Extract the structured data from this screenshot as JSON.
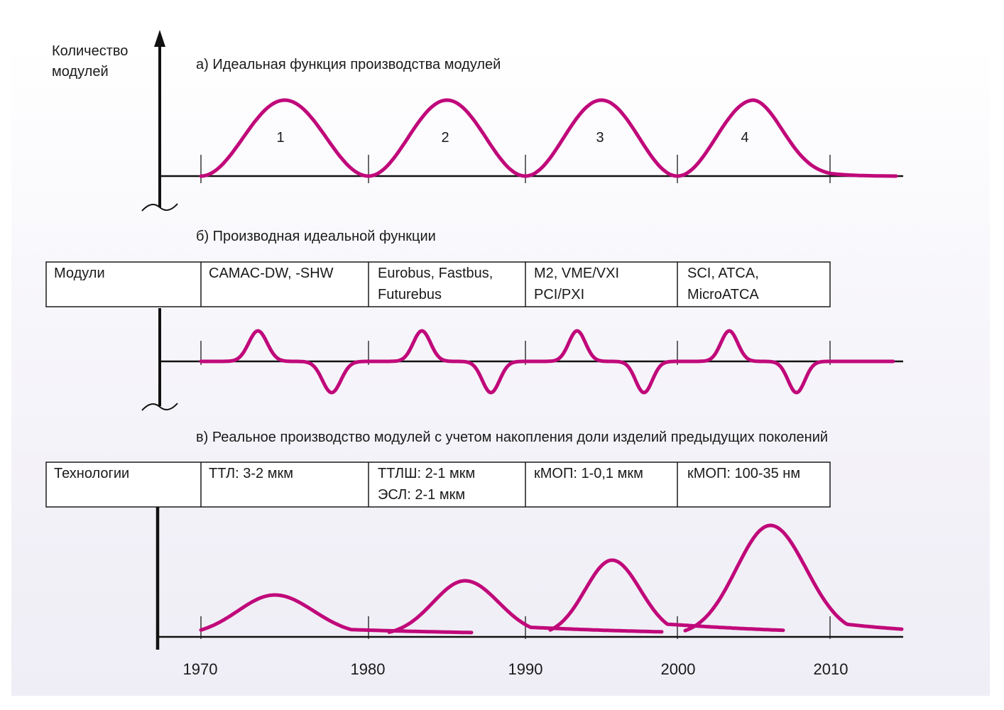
{
  "y_axis_label": [
    "Количество",
    "модулей"
  ],
  "panels": {
    "a_title": "а) Идеальная функция производства модулей",
    "b_title": "б) Производная идеальной функции",
    "c_title": "в) Реальное производство модулей с учетом накопления доли изделий предыдущих поколений"
  },
  "peak_numbers": [
    "1",
    "2",
    "3",
    "4"
  ],
  "modules_table": {
    "header": "Модули",
    "cells": [
      [
        "CAMAC-DW, -SHW"
      ],
      [
        "Eurobus, Fastbus,",
        "Futurebus"
      ],
      [
        "M2, VME/VXI",
        "PCI/PXI"
      ],
      [
        "SCI, ATCA,",
        "MicroATCA"
      ]
    ]
  },
  "tech_table": {
    "header": "Технологии",
    "cells": [
      [
        "ТТЛ: 3-2 мкм"
      ],
      [
        "ТТЛШ: 2-1 мкм",
        "ЭСЛ: 2-1 мкм"
      ],
      [
        "кМОП: 1-0,1 мкм"
      ],
      [
        "кМОП: 100-35 нм"
      ]
    ]
  },
  "x_ticks": [
    "1970",
    "1980",
    "1990",
    "2000",
    "2010"
  ],
  "colors": {
    "curve": "#c0097a",
    "axis": "#111111",
    "line": "#1a1a1a"
  }
}
